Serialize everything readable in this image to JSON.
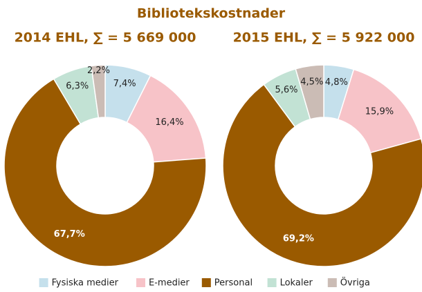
{
  "title": "Bibliotekskostnader",
  "chart_data": [
    {
      "type": "donut",
      "subtitle": "2014 EHL, ∑ = 5 669 000",
      "categories": [
        "Fysiska medier",
        "E-medier",
        "Personal",
        "Lokaler",
        "Övriga"
      ],
      "values": [
        7.4,
        16.4,
        67.7,
        6.3,
        2.2
      ],
      "value_labels": [
        "7,4%",
        "16,4%",
        "67,7%",
        "6,3%",
        "2,2%"
      ],
      "colors": [
        "#c5e0ec",
        "#f7c3c8",
        "#9a5a00",
        "#c2e2d4",
        "#cbbcb5"
      ]
    },
    {
      "type": "donut",
      "subtitle": "2015 EHL, ∑ = 5 922 000",
      "categories": [
        "Fysiska medier",
        "E-medier",
        "Personal",
        "Lokaler",
        "Övriga"
      ],
      "values": [
        4.8,
        15.9,
        69.2,
        5.6,
        4.5
      ],
      "value_labels": [
        "4,8%",
        "15,9%",
        "69,2%",
        "5,6%",
        "4,5%"
      ],
      "colors": [
        "#c5e0ec",
        "#f7c3c8",
        "#9a5a00",
        "#c2e2d4",
        "#cbbcb5"
      ]
    }
  ]
}
